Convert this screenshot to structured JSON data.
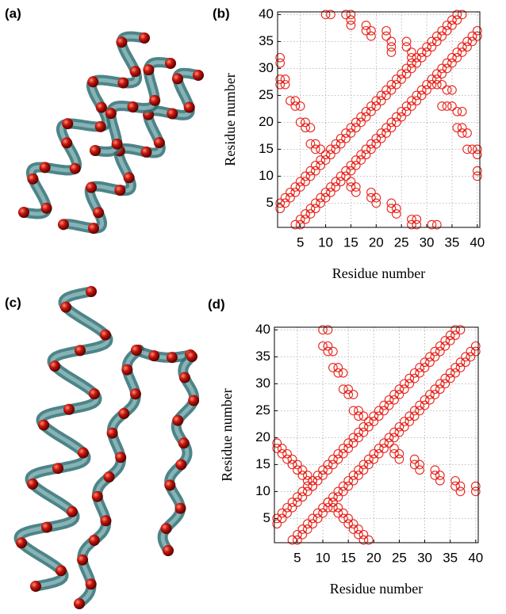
{
  "panel_labels": [
    "(a)",
    "(b)",
    "(c)",
    "(d)"
  ],
  "chart_data": [
    {
      "type": "scatter",
      "xlabel": "Residue number",
      "ylabel": "Residue number",
      "color": "#e8231a",
      "grid": true,
      "xlim": [
        0.5,
        40.5
      ],
      "ylim": [
        0.5,
        40.5
      ],
      "xticks": [
        5,
        10,
        15,
        20,
        25,
        30,
        35,
        40
      ],
      "yticks": [
        5,
        10,
        15,
        20,
        25,
        30,
        35,
        40
      ],
      "x": [
        1,
        2,
        3,
        4,
        5,
        6,
        7,
        8,
        9,
        10,
        11,
        12,
        13,
        14,
        15,
        16,
        17,
        18,
        19,
        20,
        21,
        22,
        23,
        24,
        25,
        26,
        27,
        28,
        29,
        30,
        31,
        32,
        33,
        34,
        35,
        36,
        37,
        1,
        2,
        3,
        4,
        5,
        6,
        7,
        8,
        9,
        10,
        11,
        12,
        13,
        14,
        15,
        16,
        17,
        18,
        19,
        20,
        21,
        22,
        23,
        24,
        25,
        26,
        27,
        28,
        29,
        30,
        31,
        32,
        33,
        34,
        35,
        36,
        4,
        5,
        6,
        7,
        8,
        9,
        10,
        11,
        12,
        13,
        14,
        15,
        16,
        17,
        18,
        19,
        20,
        21,
        22,
        23,
        24,
        25,
        26,
        27,
        28,
        29,
        30,
        31,
        32,
        33,
        34,
        35,
        36,
        37,
        38,
        39,
        40,
        5,
        6,
        7,
        8,
        9,
        10,
        11,
        12,
        13,
        14,
        15,
        16,
        17,
        18,
        19,
        20,
        21,
        22,
        23,
        24,
        25,
        26,
        27,
        28,
        29,
        30,
        31,
        32,
        33,
        34,
        35,
        36,
        37,
        38,
        39,
        40,
        1,
        1,
        1,
        1,
        2,
        2,
        3,
        4,
        4,
        5,
        5,
        6,
        6,
        7,
        7,
        8,
        8,
        9,
        10,
        11,
        14,
        15,
        15,
        15,
        18,
        18,
        19,
        19,
        22,
        22,
        23,
        23,
        23,
        26,
        26,
        27,
        27,
        27,
        28,
        31,
        32,
        27,
        28,
        24,
        24,
        23,
        23,
        20,
        20,
        19,
        19,
        16,
        16,
        15,
        15,
        40,
        40,
        40,
        40,
        39,
        38,
        38,
        37,
        37,
        36,
        37,
        36,
        35,
        34,
        33,
        35,
        34,
        33,
        32
      ],
      "values": [
        4,
        5,
        6,
        7,
        8,
        9,
        10,
        11,
        12,
        13,
        14,
        15,
        16,
        17,
        18,
        19,
        20,
        21,
        22,
        23,
        24,
        25,
        26,
        27,
        28,
        29,
        30,
        31,
        32,
        33,
        34,
        35,
        36,
        37,
        38,
        39,
        40,
        5,
        6,
        7,
        8,
        9,
        10,
        11,
        12,
        13,
        14,
        15,
        16,
        17,
        18,
        19,
        20,
        21,
        22,
        23,
        24,
        25,
        26,
        27,
        28,
        29,
        30,
        31,
        32,
        33,
        34,
        35,
        36,
        37,
        38,
        39,
        40,
        1,
        2,
        3,
        4,
        5,
        6,
        7,
        8,
        9,
        10,
        11,
        12,
        13,
        14,
        15,
        16,
        17,
        18,
        19,
        20,
        21,
        22,
        23,
        24,
        25,
        26,
        27,
        28,
        29,
        30,
        31,
        32,
        33,
        34,
        35,
        36,
        37,
        1,
        2,
        3,
        4,
        5,
        6,
        7,
        8,
        9,
        10,
        11,
        12,
        13,
        14,
        15,
        16,
        17,
        18,
        19,
        20,
        21,
        22,
        23,
        24,
        25,
        26,
        27,
        28,
        29,
        30,
        31,
        32,
        33,
        34,
        35,
        36,
        27,
        28,
        31,
        32,
        27,
        28,
        24,
        24,
        23,
        23,
        20,
        20,
        19,
        19,
        16,
        16,
        15,
        15,
        40,
        40,
        40,
        40,
        39,
        38,
        38,
        37,
        37,
        36,
        37,
        36,
        35,
        34,
        33,
        35,
        34,
        33,
        32,
        1,
        1,
        1,
        1,
        2,
        2,
        3,
        4,
        4,
        5,
        5,
        6,
        6,
        7,
        7,
        8,
        8,
        9,
        10,
        11,
        14,
        15,
        15,
        15,
        18,
        18,
        19,
        19,
        22,
        22,
        23,
        23,
        23,
        26,
        26,
        27,
        27
      ]
    },
    {
      "type": "scatter",
      "xlabel": "Residue number",
      "ylabel": "Residue number",
      "color": "#e8231a",
      "grid": true,
      "xlim": [
        0.5,
        40.5
      ],
      "ylim": [
        0.5,
        40.5
      ],
      "xticks": [
        5,
        10,
        15,
        20,
        25,
        30,
        35,
        40
      ],
      "yticks": [
        5,
        10,
        15,
        20,
        25,
        30,
        35,
        40
      ],
      "x": [
        1,
        2,
        3,
        4,
        5,
        6,
        7,
        8,
        9,
        10,
        11,
        12,
        13,
        14,
        15,
        16,
        17,
        18,
        19,
        20,
        21,
        22,
        23,
        24,
        25,
        26,
        27,
        28,
        29,
        30,
        31,
        32,
        33,
        34,
        35,
        36,
        37,
        1,
        2,
        3,
        4,
        5,
        6,
        7,
        8,
        9,
        10,
        11,
        12,
        13,
        14,
        15,
        16,
        17,
        18,
        19,
        20,
        21,
        22,
        23,
        24,
        25,
        26,
        27,
        28,
        29,
        30,
        31,
        32,
        33,
        34,
        35,
        36,
        4,
        5,
        6,
        7,
        8,
        9,
        10,
        11,
        12,
        13,
        14,
        15,
        16,
        17,
        18,
        19,
        20,
        21,
        22,
        23,
        24,
        25,
        26,
        27,
        28,
        29,
        30,
        31,
        32,
        33,
        34,
        35,
        36,
        37,
        38,
        39,
        40,
        5,
        6,
        7,
        8,
        9,
        10,
        11,
        12,
        13,
        14,
        15,
        16,
        17,
        18,
        19,
        20,
        21,
        22,
        23,
        24,
        25,
        26,
        27,
        28,
        29,
        30,
        31,
        32,
        33,
        34,
        35,
        36,
        37,
        38,
        39,
        40,
        1,
        2,
        3,
        4,
        5,
        6,
        7,
        8,
        11,
        12,
        13,
        14,
        15,
        16,
        17,
        18,
        1,
        2,
        3,
        4,
        5,
        6,
        7,
        8,
        12,
        13,
        14,
        15,
        16,
        17,
        18,
        19,
        10,
        11,
        10,
        11,
        11,
        12,
        12,
        13,
        13,
        14,
        14,
        15,
        15,
        16,
        16,
        17,
        17,
        18,
        40,
        40,
        37,
        37,
        36,
        36,
        33,
        33,
        32,
        32,
        29,
        29,
        28,
        28,
        25,
        25,
        24,
        24
      ],
      "values": [
        4,
        5,
        6,
        7,
        8,
        9,
        10,
        11,
        12,
        13,
        14,
        15,
        16,
        17,
        18,
        19,
        20,
        21,
        22,
        23,
        24,
        25,
        26,
        27,
        28,
        29,
        30,
        31,
        32,
        33,
        34,
        35,
        36,
        37,
        38,
        39,
        40,
        5,
        6,
        7,
        8,
        9,
        10,
        11,
        12,
        13,
        14,
        15,
        16,
        17,
        18,
        19,
        20,
        21,
        22,
        23,
        24,
        25,
        26,
        27,
        28,
        29,
        30,
        31,
        32,
        33,
        34,
        35,
        36,
        37,
        38,
        39,
        40,
        1,
        2,
        3,
        4,
        5,
        6,
        7,
        8,
        9,
        10,
        11,
        12,
        13,
        14,
        15,
        16,
        17,
        18,
        19,
        20,
        21,
        22,
        23,
        24,
        25,
        26,
        27,
        28,
        29,
        30,
        31,
        32,
        33,
        34,
        35,
        36,
        37,
        1,
        2,
        3,
        4,
        5,
        6,
        7,
        8,
        9,
        10,
        11,
        12,
        13,
        14,
        15,
        16,
        17,
        18,
        19,
        20,
        21,
        22,
        23,
        24,
        25,
        26,
        27,
        28,
        29,
        30,
        31,
        32,
        33,
        34,
        35,
        36,
        18,
        17,
        16,
        15,
        14,
        13,
        12,
        11,
        8,
        7,
        6,
        5,
        4,
        3,
        2,
        1,
        19,
        18,
        17,
        16,
        15,
        14,
        13,
        12,
        8,
        7,
        6,
        5,
        4,
        3,
        2,
        1,
        40,
        40,
        37,
        37,
        36,
        36,
        33,
        33,
        32,
        32,
        29,
        29,
        28,
        28,
        25,
        25,
        24,
        24,
        10,
        11,
        10,
        11,
        11,
        12,
        12,
        13,
        13,
        14,
        14,
        15,
        15,
        16,
        16,
        17,
        17,
        18
      ]
    }
  ]
}
